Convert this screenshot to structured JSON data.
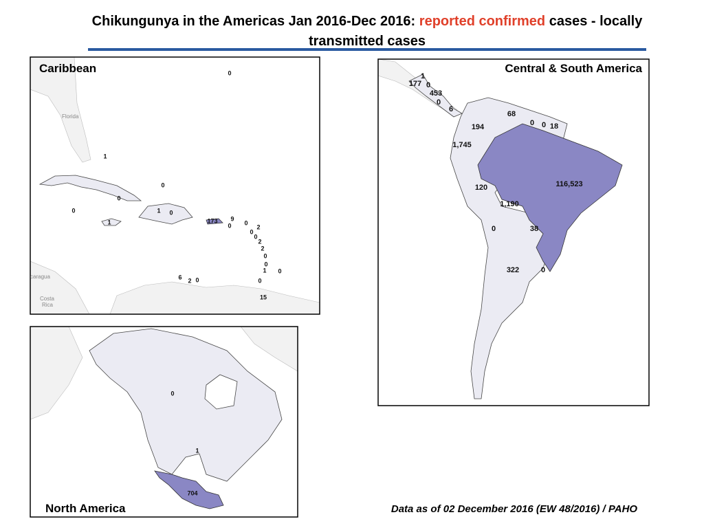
{
  "title": {
    "line1_parts": [
      "Chikungunya in the Americas Jan 2016-Dec 2016: ",
      "reported confirmed",
      " cases - locally"
    ],
    "line2": "transmitted cases"
  },
  "panels": [
    {
      "name": "Caribbean",
      "place_names": [
        "Florida",
        "caragua",
        "Costa",
        "Rica"
      ],
      "labels": [
        "0",
        "1",
        "0",
        "0",
        "0",
        "1",
        "0",
        "1",
        "173",
        "9",
        "0",
        "0",
        "2",
        "0",
        "0",
        "2",
        "2",
        "0",
        "0",
        "1",
        "0",
        "0",
        "6",
        "2",
        "0",
        "15"
      ]
    },
    {
      "name": "Central & South America",
      "labels": [
        "1",
        "177",
        "0",
        "453",
        "0",
        "6",
        "68",
        "194",
        "0",
        "0",
        "18",
        "1,745",
        "116,523",
        "120",
        "1,190",
        "0",
        "38",
        "322",
        "0"
      ]
    },
    {
      "name": "North America",
      "labels": [
        "0",
        "1",
        "704"
      ]
    }
  ],
  "footnote": "Data as of 02 December  2016 (EW 48/2016) / PAHO"
}
